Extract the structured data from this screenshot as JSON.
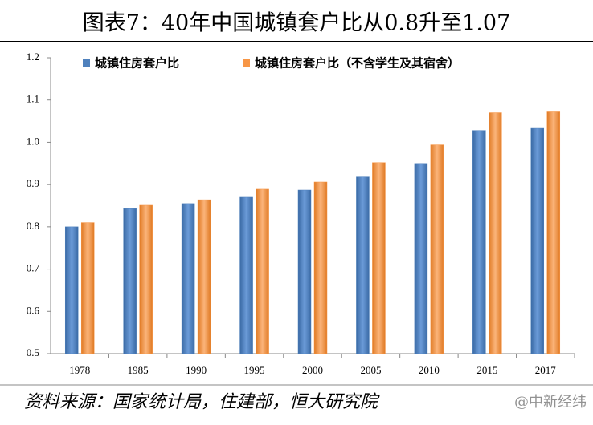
{
  "chart_data": {
    "type": "bar",
    "title": "图表7：40年中国城镇套户比从0.8升至1.07",
    "categories": [
      "1978",
      "1985",
      "1990",
      "1995",
      "2000",
      "2005",
      "2010",
      "2015",
      "2017"
    ],
    "series": [
      {
        "name": "城镇住房套户比",
        "color": "#4f81bd",
        "values": [
          0.8,
          0.843,
          0.855,
          0.87,
          0.887,
          0.918,
          0.95,
          1.028,
          1.033
        ]
      },
      {
        "name": "城镇住房套户比（不含学生及其宿舍）",
        "color": "#f79646",
        "values": [
          0.81,
          0.851,
          0.864,
          0.889,
          0.906,
          0.952,
          0.994,
          1.07,
          1.072
        ]
      }
    ],
    "ylim": [
      0.5,
      1.2
    ],
    "yticks": [
      0.5,
      0.6,
      0.7,
      0.8,
      0.9,
      {
        "value": 1.0,
        "label": "1.0"
      },
      1.1,
      1.2
    ],
    "legend": "top",
    "source": "资料来源：国家统计局，住建部，恒大研究院",
    "watermark": "@中新经纬"
  }
}
